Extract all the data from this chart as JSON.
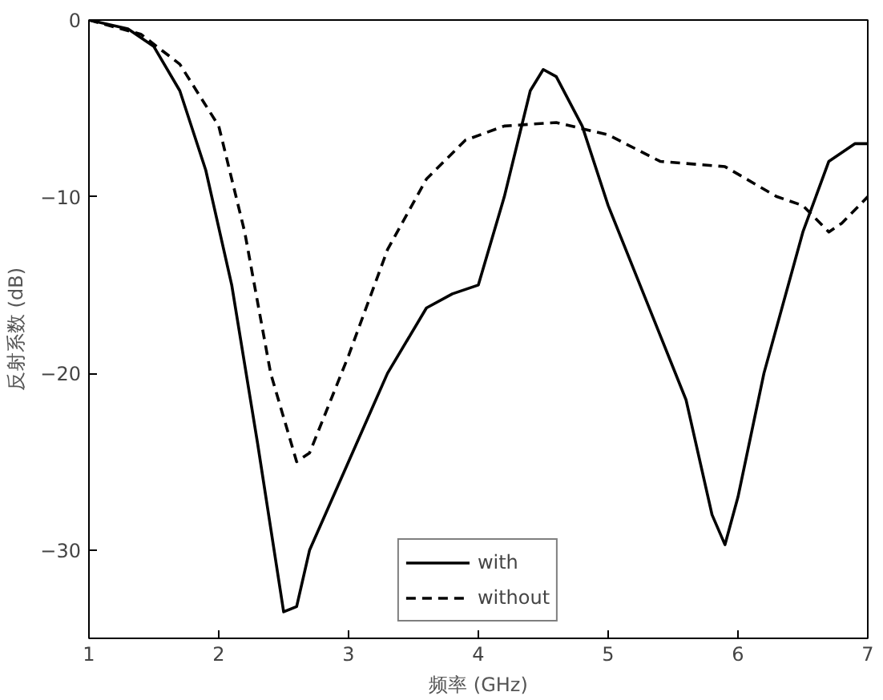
{
  "chart_data": {
    "type": "line",
    "xlabel": "频率 (GHz)",
    "ylabel": "反射系数 (dB)",
    "xlim": [
      1,
      7
    ],
    "ylim": [
      -35,
      0
    ],
    "xticks": [
      1,
      2,
      3,
      4,
      5,
      6,
      7
    ],
    "yticks": [
      0,
      -10,
      -20,
      -30
    ],
    "grid": false,
    "legend": "bottom",
    "marker": "none",
    "series": [
      {
        "name": "with",
        "color": "#000000",
        "line_style": "solid",
        "x": [
          1,
          1.3,
          1.5,
          1.7,
          1.9,
          2.1,
          2.3,
          2.5,
          2.6,
          2.7,
          3.0,
          3.3,
          3.6,
          3.8,
          4.0,
          4.2,
          4.4,
          4.5,
          4.6,
          4.8,
          5.0,
          5.3,
          5.6,
          5.8,
          5.9,
          6.0,
          6.2,
          6.5,
          6.7,
          6.9,
          7.0
        ],
        "values": [
          0,
          -0.5,
          -1.5,
          -4,
          -8.5,
          -15,
          -24,
          -33.5,
          -33.2,
          -30,
          -25,
          -20,
          -16.3,
          -15.5,
          -15,
          -10,
          -4,
          -2.8,
          -3.2,
          -6,
          -10.5,
          -16,
          -21.5,
          -28,
          -29.7,
          -27,
          -20,
          -12,
          -8,
          -7,
          -7
        ]
      },
      {
        "name": "without",
        "color": "#000000",
        "line_style": "dashed",
        "x": [
          1,
          1.4,
          1.7,
          2.0,
          2.2,
          2.4,
          2.6,
          2.7,
          3.0,
          3.3,
          3.6,
          3.9,
          4.2,
          4.6,
          5.0,
          5.4,
          5.9,
          6.3,
          6.5,
          6.7,
          6.8,
          7.0
        ],
        "values": [
          0,
          -0.8,
          -2.5,
          -6,
          -12,
          -20,
          -25,
          -24.5,
          -19,
          -13,
          -9,
          -6.8,
          -6,
          -5.8,
          -6.5,
          -8,
          -8.3,
          -10,
          -10.5,
          -12,
          -11.5,
          -10
        ]
      }
    ]
  }
}
